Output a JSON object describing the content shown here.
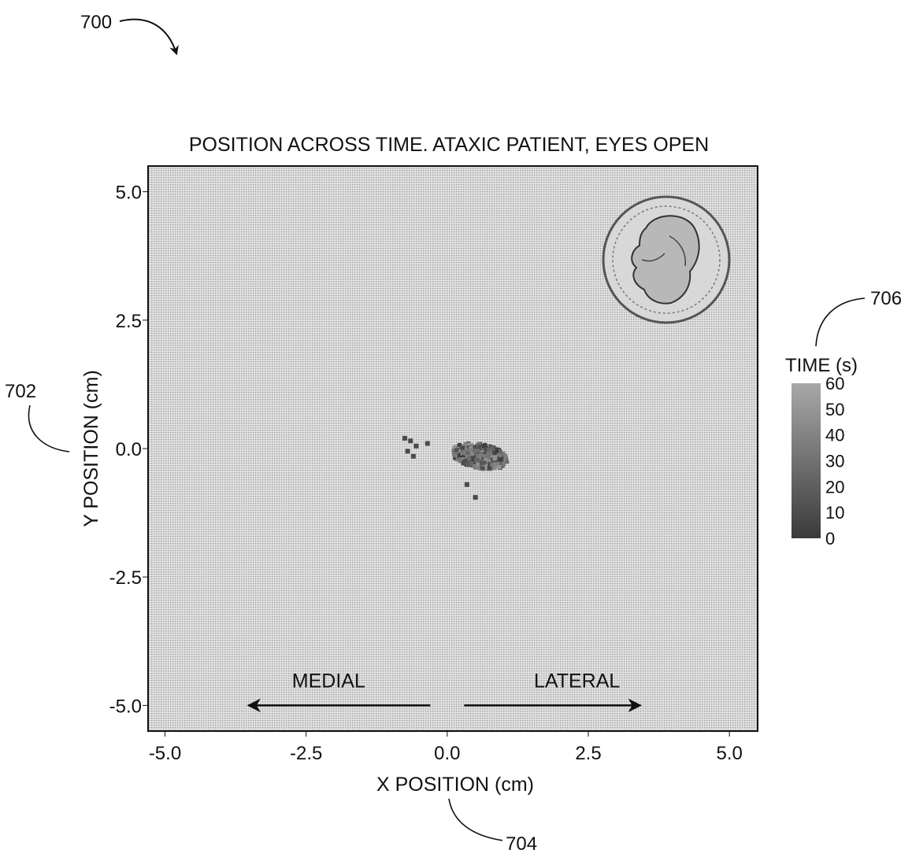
{
  "figure": {
    "ref_main": "700",
    "ref_yaxis": "702",
    "ref_xaxis": "704",
    "ref_colorbar": "706"
  },
  "chart_data": {
    "type": "scatter",
    "title": "POSITION ACROSS TIME. ATAXIC PATIENT, EYES OPEN",
    "xlabel": "X POSITION (cm)",
    "ylabel": "Y POSITION (cm)",
    "xlim": [
      -5.3,
      5.5
    ],
    "ylim": [
      -5.5,
      5.5
    ],
    "xticks": [
      -5.0,
      -2.5,
      0.0,
      2.5,
      5.0
    ],
    "xtick_labels": [
      "-5.0",
      "-2.5",
      "0.0",
      "2.5",
      "5.0"
    ],
    "yticks": [
      5.0,
      2.5,
      0.0,
      -2.5,
      -5.0
    ],
    "ytick_labels": [
      "5.0",
      "2.5",
      "0.0",
      "-2.5",
      "-5.0"
    ],
    "grid": false,
    "background": "#d6d6d6",
    "point_color_range": [
      "#3a3a3a",
      "#9a9a9a"
    ],
    "annotations": [
      {
        "text": "MEDIAL",
        "direction": "left",
        "x": -2.1,
        "y": -4.65,
        "arrow_from": -0.3,
        "arrow_to": -3.5,
        "arrow_y": -5.0
      },
      {
        "text": "LATERAL",
        "direction": "right",
        "x": 2.3,
        "y": -4.65,
        "arrow_from": 0.3,
        "arrow_to": 3.4,
        "arrow_y": -5.0
      }
    ],
    "inset_image": "quarter-coin",
    "colorbar": {
      "label": "TIME (s)",
      "ticks": [
        60,
        50,
        40,
        30,
        20,
        10,
        0
      ],
      "range": [
        0,
        60
      ]
    },
    "cluster": {
      "center": [
        0.6,
        -0.15
      ],
      "spread": [
        0.45,
        0.22
      ],
      "extent_x": [
        -0.8,
        1.2
      ],
      "extent_y": [
        -0.95,
        0.35
      ]
    }
  }
}
